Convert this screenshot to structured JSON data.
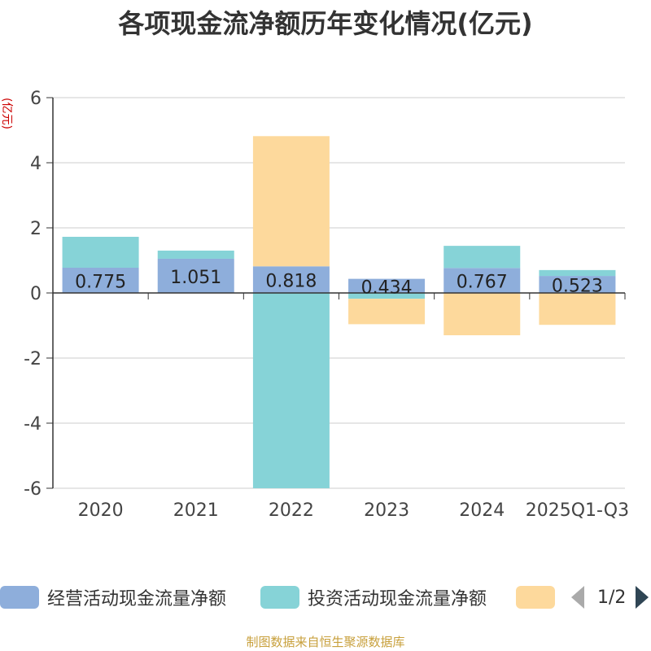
{
  "title": "各项现金流净额历年变化情况(亿元)",
  "source_note": "制图数据来自恒生聚源数据库",
  "legend_page": "1/2",
  "chart_data": {
    "type": "bar",
    "stacked": true,
    "title": "各项现金流净额历年变化情况(亿元)",
    "ylabel": "(亿元)",
    "ylim": [
      -6,
      6
    ],
    "yticks": [
      6,
      4,
      2,
      0,
      -2,
      -4,
      -6
    ],
    "yticklabels": [
      "6",
      "4",
      "2",
      "0",
      "-2",
      "-4",
      "-6"
    ],
    "categories": [
      "2020",
      "2021",
      "2022",
      "2023",
      "2024",
      "2025Q1-Q3"
    ],
    "grid": true,
    "legend_position": "bottom",
    "series": [
      {
        "name": "经营活动现金流量净额",
        "color": "#8eaedb",
        "values": [
          0.775,
          1.051,
          0.818,
          0.434,
          0.767,
          0.523
        ],
        "labels": [
          "0.775",
          "1.051",
          "0.818",
          "0.434",
          "0.767",
          "0.523"
        ]
      },
      {
        "name": "投资活动现金流量净额",
        "color": "#86d3d7",
        "values": [
          0.95,
          0.25,
          -6.0,
          -0.18,
          0.68,
          0.18
        ]
      },
      {
        "name": "",
        "color": "#fdd99c",
        "values": [
          0,
          0,
          4.0,
          -0.78,
          -1.3,
          -0.98
        ]
      }
    ]
  }
}
